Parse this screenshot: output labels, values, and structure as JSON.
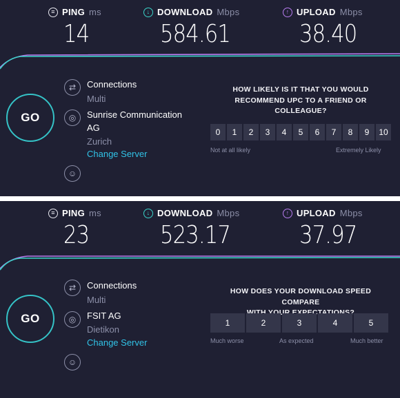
{
  "panels": [
    {
      "ping": {
        "label": "PING",
        "unit": "ms",
        "value": "14"
      },
      "download": {
        "label": "DOWNLOAD",
        "unit": "Mbps",
        "value": "584.61"
      },
      "upload": {
        "label": "UPLOAD",
        "unit": "Mbps",
        "value": "38.40"
      },
      "go_label": "GO",
      "connections": {
        "label": "Connections",
        "value": "Multi"
      },
      "server": {
        "name_line1": "Sunrise Communication",
        "name_line2": "AG",
        "location": "Zurich",
        "change_label": "Change Server"
      },
      "survey": {
        "question_line1": "HOW LIKELY IS IT THAT YOU WOULD",
        "question_line2": "RECOMMEND UPC TO A FRIEND OR",
        "question_line3": "COLLEAGUE?",
        "options": [
          "0",
          "1",
          "2",
          "3",
          "4",
          "5",
          "6",
          "7",
          "8",
          "9",
          "10"
        ],
        "low_label": "Not at all likely",
        "high_label": "Extremely Likely"
      }
    },
    {
      "ping": {
        "label": "PING",
        "unit": "ms",
        "value": "23"
      },
      "download": {
        "label": "DOWNLOAD",
        "unit": "Mbps",
        "value": "523.17"
      },
      "upload": {
        "label": "UPLOAD",
        "unit": "Mbps",
        "value": "37.97"
      },
      "go_label": "GO",
      "connections": {
        "label": "Connections",
        "value": "Multi"
      },
      "server": {
        "name_line1": "FSIT AG",
        "location": "Dietikon",
        "change_label": "Change Server"
      },
      "survey": {
        "question_line1": "HOW DOES YOUR DOWNLOAD SPEED COMPARE",
        "question_line2": "WITH YOUR EXPECTATIONS?",
        "options": [
          "1",
          "2",
          "3",
          "4",
          "5"
        ],
        "low_label": "Much worse",
        "mid_label": "As expected",
        "high_label": "Much better"
      }
    }
  ],
  "colors": {
    "background": "#1f2033",
    "download_accent": "#3ad3c9",
    "upload_accent": "#b87cf0",
    "link": "#31c2e6",
    "go_ring": "#35c3c7"
  },
  "icons": {
    "ping": "ping-gauge-icon",
    "download": "download-arrow-icon",
    "upload": "upload-arrow-icon",
    "connections": "connections-icon",
    "server": "globe-icon",
    "user": "user-icon"
  }
}
